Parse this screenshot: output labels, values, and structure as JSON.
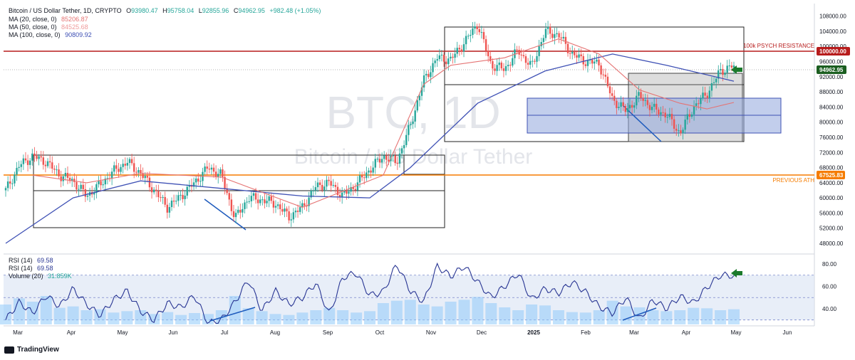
{
  "legend": {
    "symbol": "Bitcoin / US Dollar Tether, 1D, CRYPTO",
    "o_label": "O",
    "o": "93980.47",
    "h_label": "H",
    "h": "95758.04",
    "l_label": "L",
    "l": "92855.96",
    "c_label": "C",
    "c": "94962.95",
    "change": "+982.48 (+1.05%)",
    "ma20_label": "MA (20, close, 0)",
    "ma20_value": "85206.87",
    "ma50_label": "MA (50, close, 0)",
    "ma50_value": "84525.68",
    "ma100_label": "MA (100, close, 0)",
    "ma100_value": "90809.92",
    "rsi_label": "RSI (14)",
    "rsi_value": "69.58",
    "rsi2_label": "RSI (14)",
    "rsi2_value": "69.58",
    "volume_label": "Volume (20)",
    "volume_value": "31.859K"
  },
  "watermark": {
    "ticker": "BTC, 1D",
    "name": "Bitcoin / US Dollar Tether"
  },
  "annotations": {
    "resistance": "100k PSYCH RESISTANCE",
    "ath": "PREVIOUS ATH"
  },
  "price_labels": {
    "resistance": "100000.00",
    "current": "94962.95",
    "ath": "67525.83"
  },
  "footer": {
    "brand": "TradingView"
  },
  "colors": {
    "up": "#26a69a",
    "down": "#ef5350",
    "ma20": "#e57373",
    "ma100": "#3f51b5",
    "resistance": "#b71c1c",
    "ath": "#f57c00",
    "current": "#1b5e20",
    "rsi": "#283593",
    "zone_blue": "#8fa6dc",
    "zone_grey": "#9e9e9e",
    "arrow": "#1b7a2c"
  },
  "chart_data": [
    {
      "type": "candlestick",
      "title": "Bitcoin / US Dollar Tether, 1D, CRYPTO",
      "x_ticks": [
        "Mar",
        "Apr",
        "May",
        "Jun",
        "Jul",
        "Aug",
        "Sep",
        "Oct",
        "Nov",
        "Dec",
        "2025",
        "Feb",
        "Mar",
        "Apr",
        "May",
        "Jun"
      ],
      "y_ticks": [
        48000,
        52000,
        56000,
        60000,
        64000,
        68000,
        72000,
        76000,
        80000,
        84000,
        88000,
        92000,
        96000,
        100000,
        104000,
        108000
      ],
      "ylim": [
        46500,
        110000
      ],
      "close_path": [
        [
          "Mar",
          62000
        ],
        [
          "Mar",
          68500
        ],
        [
          "Mar",
          71000
        ],
        [
          "Apr",
          69500
        ],
        [
          "Apr",
          66000
        ],
        [
          "Apr",
          64500
        ],
        [
          "May",
          60500
        ],
        [
          "May",
          63500
        ],
        [
          "May",
          67000
        ],
        [
          "Jun",
          69500
        ],
        [
          "Jun",
          66500
        ],
        [
          "Jun",
          62000
        ],
        [
          "Jul",
          57500
        ],
        [
          "Jul",
          60500
        ],
        [
          "Jul",
          64000
        ],
        [
          "Jul",
          68000
        ],
        [
          "Aug",
          66000
        ],
        [
          "Aug",
          54500
        ],
        [
          "Aug",
          60000
        ],
        [
          "Aug",
          59500
        ],
        [
          "Sep",
          58500
        ],
        [
          "Sep",
          55000
        ],
        [
          "Sep",
          57500
        ],
        [
          "Sep",
          63000
        ],
        [
          "Oct",
          64000
        ],
        [
          "Oct",
          60500
        ],
        [
          "Oct",
          63500
        ],
        [
          "Oct",
          67500
        ],
        [
          "Nov",
          71000
        ],
        [
          "Nov",
          69500
        ],
        [
          "Nov",
          79000
        ],
        [
          "Nov",
          91000
        ],
        [
          "Nov",
          97000
        ],
        [
          "Dec",
          96500
        ],
        [
          "Dec",
          101000
        ],
        [
          "Dec",
          106000
        ],
        [
          "Dec",
          95000
        ],
        [
          "2025",
          94000
        ],
        [
          "2025",
          99000
        ],
        [
          "2025",
          94500
        ],
        [
          "2025",
          104000
        ],
        [
          "2025",
          103000
        ],
        [
          "Feb",
          98000
        ],
        [
          "Feb",
          96000
        ],
        [
          "Feb",
          95500
        ],
        [
          "Mar",
          86000
        ],
        [
          "Mar",
          83000
        ],
        [
          "Mar",
          87000
        ],
        [
          "Mar",
          83500
        ],
        [
          "Apr",
          82000
        ],
        [
          "Apr",
          77000
        ],
        [
          "Apr",
          84000
        ],
        [
          "Apr",
          87500
        ],
        [
          "Apr",
          93500
        ],
        [
          "Apr",
          94962.95
        ]
      ],
      "ma20": [
        [
          2,
          66000
        ],
        [
          6,
          64000
        ],
        [
          10,
          66500
        ],
        [
          16,
          65500
        ],
        [
          22,
          57500
        ],
        [
          28,
          66000
        ],
        [
          31,
          90000
        ],
        [
          33,
          95000
        ],
        [
          37,
          97000
        ],
        [
          41,
          102000
        ],
        [
          44,
          98000
        ],
        [
          47,
          88500
        ],
        [
          50,
          85000
        ],
        [
          52,
          83500
        ],
        [
          54,
          85206.87
        ]
      ],
      "ma100": [
        [
          0,
          48000
        ],
        [
          5,
          60000
        ],
        [
          10,
          64500
        ],
        [
          16,
          62500
        ],
        [
          22,
          60500
        ],
        [
          27,
          60000
        ],
        [
          30,
          68000
        ],
        [
          35,
          85000
        ],
        [
          40,
          93500
        ],
        [
          45,
          98000
        ],
        [
          49,
          95000
        ],
        [
          52,
          92500
        ],
        [
          54,
          90809.92
        ]
      ],
      "ma50_last": 84525.68,
      "levels": [
        {
          "name": "100k PSYCH RESISTANCE",
          "value": 100000
        },
        {
          "name": "PREVIOUS ATH",
          "value": 67525.83
        }
      ]
    },
    {
      "type": "line",
      "title": "RSI (14)",
      "y_ticks": [
        40,
        60,
        80
      ],
      "ylim": [
        26,
        87
      ],
      "bands": [
        30,
        50,
        70
      ],
      "values": [
        30,
        46,
        36,
        52,
        42,
        58,
        44,
        34,
        48,
        56,
        38,
        30,
        45,
        41,
        52,
        27,
        30,
        46,
        66,
        38,
        56,
        44,
        50,
        63,
        35,
        68,
        72,
        52,
        55,
        80,
        56,
        46,
        78,
        69,
        78,
        64,
        50,
        60,
        72,
        48,
        58,
        54,
        64,
        55,
        42,
        36,
        50,
        30,
        48,
        40,
        51,
        45,
        59,
        70,
        69.58
      ]
    },
    {
      "type": "bar",
      "title": "Volume (20)",
      "last": "31.859K",
      "values": [
        0.42,
        0.55,
        0.48,
        0.6,
        0.35,
        0.38,
        0.3,
        0.32,
        0.25,
        0.28,
        0.3,
        0.22,
        0.26,
        0.2,
        0.24,
        0.22,
        0.3,
        0.6,
        0.34,
        0.28,
        0.22,
        0.2,
        0.25,
        0.3,
        0.35,
        0.3,
        0.25,
        0.28,
        0.45,
        0.5,
        0.52,
        0.42,
        0.38,
        0.48,
        0.52,
        0.58,
        0.45,
        0.36,
        0.3,
        0.42,
        0.4,
        0.3,
        0.26,
        0.25,
        0.3,
        0.5,
        0.38,
        0.36,
        0.3,
        0.28,
        0.3,
        0.35,
        0.34,
        0.3,
        0.32
      ]
    }
  ]
}
